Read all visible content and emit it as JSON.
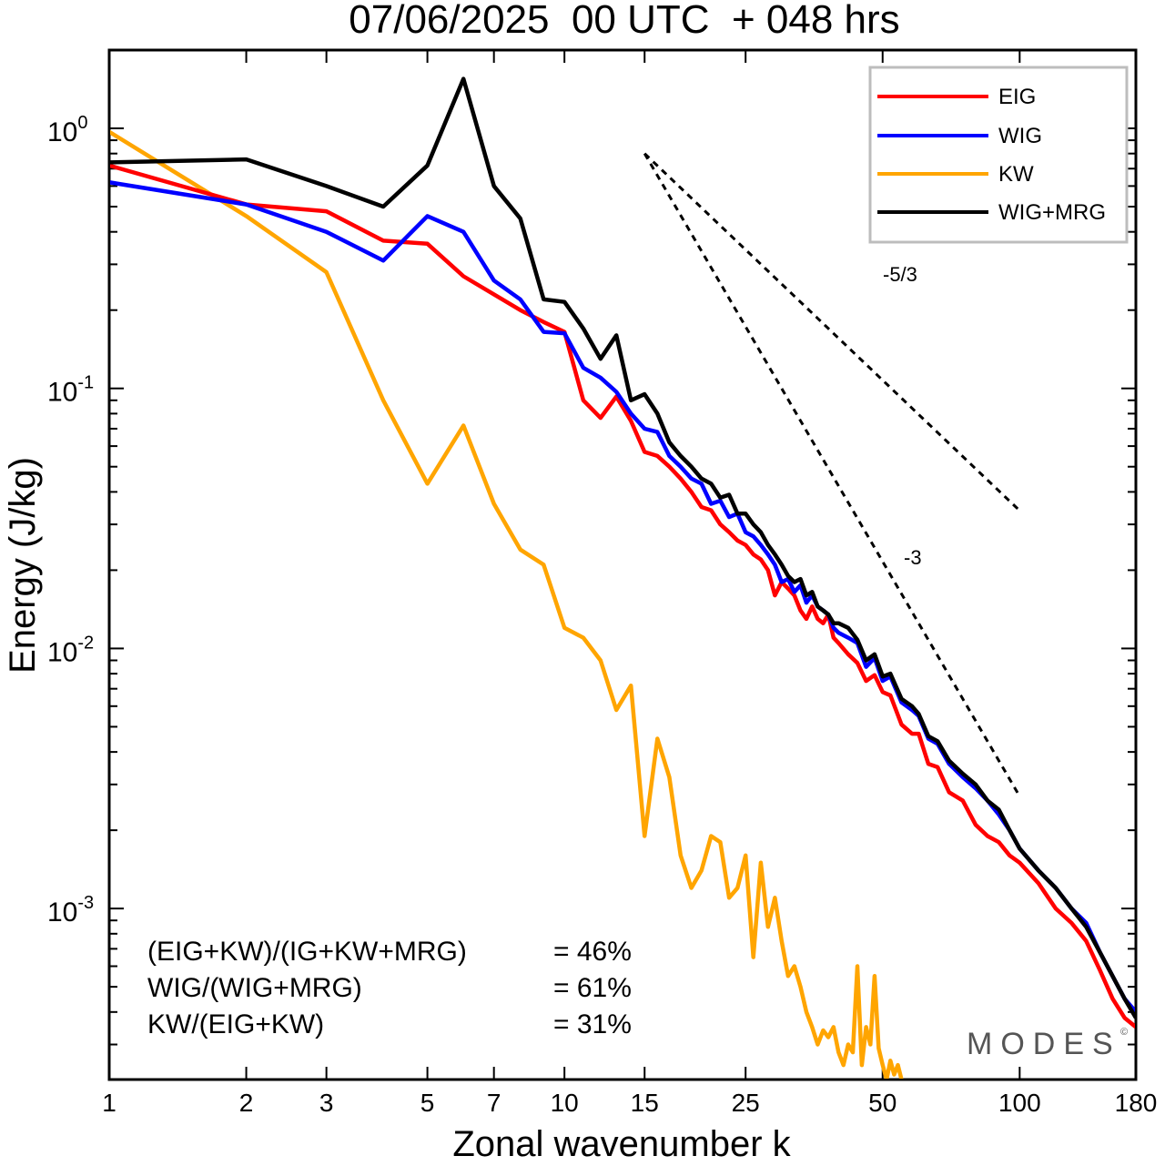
{
  "chart_data": {
    "type": "line",
    "title": "07/06/2025  00 UTC  + 048 hrs",
    "xlabel": "Zonal wavenumber k",
    "ylabel": "Energy (J/kg)",
    "xscale": "log",
    "yscale": "log",
    "xlim": [
      1,
      180
    ],
    "ylim": [
      0.00022,
      2.0
    ],
    "xticks": [
      1,
      2,
      3,
      5,
      7,
      10,
      15,
      25,
      50,
      100,
      180
    ],
    "yticks": [
      {
        "value": 1.0,
        "base": "10",
        "exp": "0"
      },
      {
        "value": 0.1,
        "base": "10",
        "exp": "-1"
      },
      {
        "value": 0.01,
        "base": "10",
        "exp": "-2"
      },
      {
        "value": 0.001,
        "base": "10",
        "exp": "-3"
      }
    ],
    "grid": false,
    "legend_position": "top-right",
    "series": [
      {
        "name": "EIG",
        "color": "#ff0000",
        "x": [
          1,
          2,
          3,
          4,
          5,
          6,
          7,
          8,
          9,
          10,
          11,
          12,
          13,
          14,
          15,
          16,
          17,
          18,
          19,
          20,
          21,
          22,
          23,
          24,
          25,
          26,
          27,
          28,
          29,
          30,
          31,
          32,
          33,
          34,
          35,
          36,
          37,
          38,
          39,
          40,
          42,
          44,
          46,
          48,
          50,
          52,
          55,
          58,
          60,
          63,
          66,
          70,
          75,
          80,
          85,
          90,
          95,
          100,
          110,
          120,
          130,
          140,
          150,
          160,
          170,
          180
        ],
        "values": [
          0.72,
          0.51,
          0.48,
          0.37,
          0.36,
          0.27,
          0.23,
          0.2,
          0.18,
          0.165,
          0.09,
          0.077,
          0.093,
          0.075,
          0.057,
          0.055,
          0.05,
          0.045,
          0.04,
          0.035,
          0.034,
          0.03,
          0.028,
          0.026,
          0.025,
          0.023,
          0.022,
          0.02,
          0.016,
          0.018,
          0.017,
          0.016,
          0.014,
          0.013,
          0.0145,
          0.013,
          0.0125,
          0.0135,
          0.011,
          0.0105,
          0.0095,
          0.0088,
          0.0075,
          0.0079,
          0.0068,
          0.0066,
          0.0051,
          0.0047,
          0.0047,
          0.0036,
          0.0035,
          0.0028,
          0.0026,
          0.0021,
          0.0019,
          0.0018,
          0.0016,
          0.0015,
          0.00125,
          0.001,
          0.00088,
          0.00075,
          0.00058,
          0.00045,
          0.00038,
          0.00035
        ]
      },
      {
        "name": "WIG",
        "color": "#0000ff",
        "x": [
          1,
          2,
          3,
          4,
          5,
          6,
          7,
          8,
          9,
          10,
          11,
          12,
          13,
          14,
          15,
          16,
          17,
          18,
          19,
          20,
          21,
          22,
          23,
          24,
          25,
          26,
          27,
          28,
          29,
          30,
          31,
          32,
          33,
          34,
          35,
          36,
          37,
          38,
          39,
          40,
          42,
          44,
          46,
          48,
          50,
          52,
          55,
          58,
          60,
          63,
          66,
          70,
          75,
          80,
          85,
          90,
          95,
          100,
          110,
          120,
          130,
          140,
          150,
          160,
          170,
          180
        ],
        "values": [
          0.62,
          0.51,
          0.4,
          0.31,
          0.46,
          0.4,
          0.26,
          0.22,
          0.165,
          0.163,
          0.12,
          0.11,
          0.097,
          0.08,
          0.07,
          0.068,
          0.055,
          0.05,
          0.045,
          0.043,
          0.036,
          0.037,
          0.032,
          0.033,
          0.028,
          0.027,
          0.025,
          0.023,
          0.021,
          0.018,
          0.0185,
          0.0165,
          0.0175,
          0.015,
          0.016,
          0.0145,
          0.014,
          0.0135,
          0.012,
          0.0115,
          0.011,
          0.0105,
          0.0085,
          0.0092,
          0.0075,
          0.0078,
          0.0062,
          0.0058,
          0.0055,
          0.0045,
          0.0043,
          0.0036,
          0.0032,
          0.0029,
          0.0026,
          0.0023,
          0.002,
          0.0017,
          0.0014,
          0.0012,
          0.001,
          0.00088,
          0.00068,
          0.00055,
          0.00045,
          0.0004
        ]
      },
      {
        "name": "KW",
        "color": "#ffa500",
        "x": [
          1,
          2,
          3,
          4,
          5,
          6,
          7,
          8,
          9,
          10,
          11,
          12,
          13,
          14,
          15,
          16,
          17,
          18,
          19,
          20,
          21,
          22,
          23,
          24,
          25,
          26,
          27,
          28,
          29,
          30,
          31,
          32,
          33,
          34,
          35,
          36,
          37,
          38,
          39,
          40,
          41,
          42,
          43,
          44,
          45,
          46,
          47,
          48,
          49,
          50,
          51,
          52,
          53,
          54,
          55
        ],
        "values": [
          0.97,
          0.46,
          0.28,
          0.09,
          0.043,
          0.072,
          0.036,
          0.024,
          0.021,
          0.012,
          0.011,
          0.009,
          0.0058,
          0.0072,
          0.0019,
          0.0045,
          0.0032,
          0.0016,
          0.0012,
          0.0014,
          0.0019,
          0.0018,
          0.0011,
          0.0012,
          0.0016,
          0.00065,
          0.0015,
          0.00085,
          0.0011,
          0.00075,
          0.00055,
          0.0006,
          0.0005,
          0.0004,
          0.00035,
          0.0003,
          0.00034,
          0.00032,
          0.00035,
          0.00028,
          0.00025,
          0.0003,
          0.00028,
          0.0006,
          0.00025,
          0.00035,
          0.0003,
          0.00055,
          0.00029,
          0.00025,
          0.00022,
          0.00026,
          0.00023,
          0.00025,
          0.00022
        ]
      },
      {
        "name": "WIG+MRG",
        "color": "#000000",
        "x": [
          1,
          2,
          3,
          4,
          5,
          6,
          7,
          8,
          9,
          10,
          11,
          12,
          13,
          14,
          15,
          16,
          17,
          18,
          19,
          20,
          21,
          22,
          23,
          24,
          25,
          26,
          27,
          28,
          29,
          30,
          31,
          32,
          33,
          34,
          35,
          36,
          37,
          38,
          39,
          40,
          42,
          44,
          46,
          48,
          50,
          52,
          55,
          58,
          60,
          63,
          66,
          70,
          75,
          80,
          85,
          90,
          95,
          100,
          110,
          120,
          130,
          140,
          150,
          160,
          170,
          180
        ],
        "values": [
          0.74,
          0.76,
          0.6,
          0.5,
          0.72,
          1.55,
          0.6,
          0.45,
          0.22,
          0.215,
          0.17,
          0.13,
          0.16,
          0.09,
          0.095,
          0.08,
          0.062,
          0.055,
          0.05,
          0.045,
          0.043,
          0.038,
          0.039,
          0.033,
          0.033,
          0.03,
          0.028,
          0.025,
          0.023,
          0.021,
          0.019,
          0.018,
          0.0185,
          0.016,
          0.0165,
          0.0145,
          0.014,
          0.0135,
          0.0125,
          0.0125,
          0.012,
          0.0108,
          0.009,
          0.0095,
          0.0078,
          0.008,
          0.0064,
          0.006,
          0.0056,
          0.0046,
          0.0044,
          0.0037,
          0.0033,
          0.003,
          0.0026,
          0.0024,
          0.002,
          0.0017,
          0.0014,
          0.0012,
          0.001,
          0.00085,
          0.00068,
          0.00055,
          0.00045,
          0.00038
        ]
      }
    ],
    "reference_lines": [
      {
        "label": "-5/3",
        "slope": -1.6667,
        "x": [
          15,
          100
        ],
        "y0": 0.8
      },
      {
        "label": "-3",
        "slope": -3,
        "x": [
          15,
          100
        ],
        "y0": 0.8
      }
    ],
    "annotations": [
      {
        "label": "(EIG+KW)/(IG+KW+MRG)",
        "value": "= 46%"
      },
      {
        "label": "WIG/(WIG+MRG)",
        "value": "= 61%"
      },
      {
        "label": "KW/(EIG+KW)",
        "value": "= 31%"
      }
    ],
    "watermark": {
      "text": "MODES",
      "symbol": "©"
    }
  }
}
